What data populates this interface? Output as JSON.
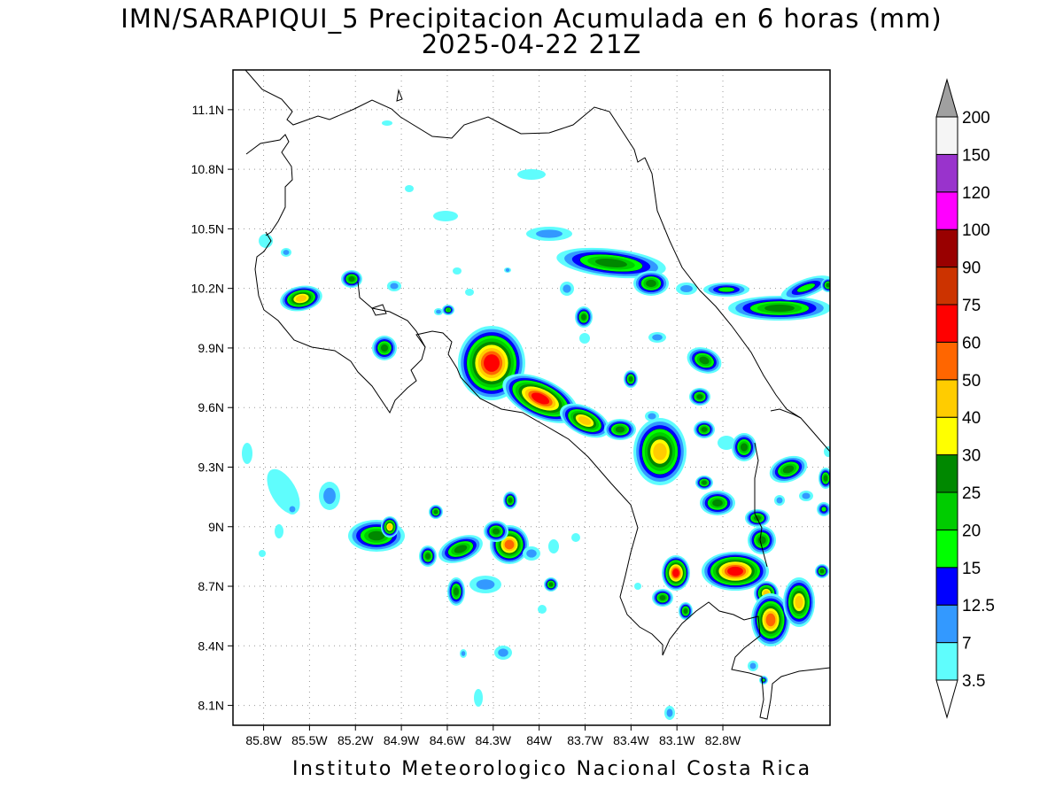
{
  "title": {
    "line1": "IMN/SARAPIQUI_5 Precipitacion Acumulada en 6 horas (mm)",
    "line2": "2025-04-22 21Z"
  },
  "footer": "Instituto Meteorologico Nacional Costa Rica",
  "map": {
    "lon_range": [
      -86.0,
      -82.1
    ],
    "lat_range": [
      8.0,
      11.3
    ],
    "lon_ticks": [
      "85.8W",
      "85.5W",
      "85.2W",
      "84.9W",
      "84.6W",
      "84.3W",
      "84W",
      "83.7W",
      "83.4W",
      "83.1W",
      "82.8W"
    ],
    "lon_tick_values": [
      -85.8,
      -85.5,
      -85.2,
      -84.9,
      -84.6,
      -84.3,
      -84.0,
      -83.7,
      -83.4,
      -83.1,
      -82.8
    ],
    "lat_ticks": [
      "11.1N",
      "10.8N",
      "10.5N",
      "10.2N",
      "9.9N",
      "9.6N",
      "9.3N",
      "9N",
      "8.7N",
      "8.4N",
      "8.1N"
    ],
    "lat_tick_values": [
      11.1,
      10.8,
      10.5,
      10.2,
      9.9,
      9.6,
      9.3,
      9.0,
      8.7,
      8.4,
      8.1
    ],
    "grid": "dotted"
  },
  "colorbar": {
    "labels": [
      "3.5",
      "7",
      "12.5",
      "15",
      "20",
      "25",
      "30",
      "40",
      "50",
      "60",
      "75",
      "90",
      "100",
      "120",
      "150",
      "200"
    ],
    "colors": [
      "#ffffff",
      "#5ffdfd",
      "#3399ff",
      "#0000ff",
      "#00ff00",
      "#00cc00",
      "#008800",
      "#ffff00",
      "#ffcc00",
      "#ff6600",
      "#ff0000",
      "#cc3300",
      "#990000",
      "#ff00ff",
      "#9933cc",
      "#f5f5f5"
    ],
    "over_color": "#a0a0a0",
    "under_color": "#ffffff"
  },
  "rain_levels": [
    "#5ffdfd",
    "#3399ff",
    "#0000ff",
    "#00ff00",
    "#00cc00",
    "#008800",
    "#ffff00",
    "#ffcc00",
    "#ff6600",
    "#ff0000",
    "#990000"
  ]
}
